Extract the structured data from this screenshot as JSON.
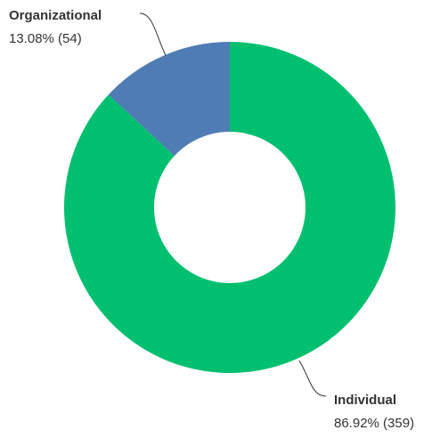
{
  "chart_data": {
    "type": "donut",
    "categories": [
      "Organizational",
      "Individual"
    ],
    "values": [
      13.08,
      86.92
    ],
    "value_labels": [
      "13.08% (54)",
      "86.92% (359)"
    ],
    "colors": [
      "#507cb6",
      "#00bf6f"
    ]
  }
}
